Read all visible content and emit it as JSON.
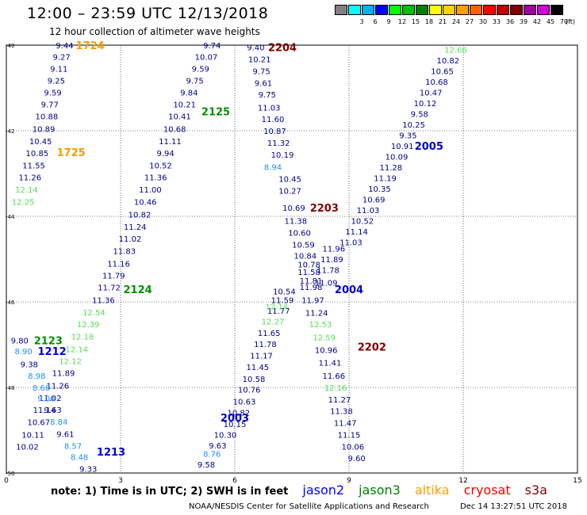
{
  "title": "12:00 – 23:59 UTC 12/13/2018",
  "subtitle": "12 hour collection of altimeter wave heights",
  "color_scale": {
    "unit": "(ft)",
    "swatches": [
      {
        "label": "",
        "color": "#808080"
      },
      {
        "label": "3",
        "color": "#00ffff"
      },
      {
        "label": "6",
        "color": "#00b0f0"
      },
      {
        "label": "9",
        "color": "#0000ff"
      },
      {
        "label": "12",
        "color": "#00ff00"
      },
      {
        "label": "15",
        "color": "#00c000"
      },
      {
        "label": "18",
        "color": "#008000"
      },
      {
        "label": "21",
        "color": "#ffff00"
      },
      {
        "label": "24",
        "color": "#ffd000"
      },
      {
        "label": "27",
        "color": "#ffa000"
      },
      {
        "label": "30",
        "color": "#ff6000"
      },
      {
        "label": "33",
        "color": "#ff0000"
      },
      {
        "label": "36",
        "color": "#c00000"
      },
      {
        "label": "39",
        "color": "#800000"
      },
      {
        "label": "42",
        "color": "#a000a0"
      },
      {
        "label": "45",
        "color": "#d000d0"
      },
      {
        "label": "70",
        "color": "#000000"
      }
    ]
  },
  "axes": {
    "x_ticks": [
      "0",
      "3",
      "6",
      "9",
      "12",
      "15"
    ],
    "y_ticks": [
      "-40",
      "-42",
      "-44",
      "-46",
      "-48",
      "-50"
    ],
    "x_range": [
      0,
      15
    ],
    "y_range": [
      -50,
      -40
    ]
  },
  "legend": {
    "note": "note: 1) Time is in UTC; 2) SWH is in feet",
    "missions": [
      {
        "name": "jason2",
        "color": "#0000ff"
      },
      {
        "name": "jason3",
        "color": "#008000"
      },
      {
        "name": "altika",
        "color": "#ffa000"
      },
      {
        "name": "cryosat",
        "color": "#ff0000"
      },
      {
        "name": "s3a",
        "color": "#800000"
      }
    ]
  },
  "footer": {
    "org": "NOAA/NESDIS Center for Satellite Applications and Research",
    "generated": "Dec 14 13:27:51 UTC 2018"
  },
  "colors": {
    "navy": "#00008b",
    "lightblue": "#1e90ff",
    "lightgreen": "#55dd55",
    "green": "#009000",
    "orange": "#ff9900",
    "darkred": "#800000",
    "blue": "#0000cc"
  },
  "tracks": [
    {
      "id": "1724",
      "color": "#ff9900",
      "label_lon": 2.2,
      "label_lat": -40.0,
      "points": [
        {
          "lon": 1.53,
          "lat": -40.0,
          "v": "9.44",
          "c": "navy"
        },
        {
          "lon": 1.45,
          "lat": -40.27,
          "v": "9.27",
          "c": "navy"
        },
        {
          "lon": 1.38,
          "lat": -40.55,
          "v": "9.11",
          "c": "navy"
        },
        {
          "lon": 1.31,
          "lat": -40.82,
          "v": "9.25",
          "c": "navy"
        },
        {
          "lon": 1.22,
          "lat": -41.1,
          "v": "9.59",
          "c": "navy"
        },
        {
          "lon": 1.14,
          "lat": -41.38,
          "v": "9.77",
          "c": "navy"
        },
        {
          "lon": 1.06,
          "lat": -41.66,
          "v": "10.88",
          "c": "navy"
        },
        {
          "lon": 0.98,
          "lat": -41.95,
          "v": "10.89",
          "c": "navy"
        },
        {
          "lon": 0.9,
          "lat": -42.24,
          "v": "10.45",
          "c": "navy"
        },
        {
          "lon": 0.81,
          "lat": -42.52,
          "v": "10.85",
          "c": "navy"
        },
        {
          "lon": 0.72,
          "lat": -42.81,
          "v": "11.55",
          "c": "navy"
        },
        {
          "lon": 0.62,
          "lat": -43.08,
          "v": "11.26",
          "c": "navy"
        },
        {
          "lon": 0.53,
          "lat": -43.37,
          "v": "12.14",
          "c": "lightgreen"
        },
        {
          "lon": 0.44,
          "lat": -43.66,
          "v": "12.25",
          "c": "lightgreen"
        }
      ]
    },
    {
      "id": "1725",
      "color": "#ff9900",
      "label_lon": 1.7,
      "label_lat": -42.5,
      "points": []
    },
    {
      "id": "2125",
      "color": "#009000",
      "label_lon": 5.5,
      "label_lat": -41.55,
      "points": [
        {
          "lon": 5.4,
          "lat": -40.0,
          "v": "9.74",
          "c": "navy"
        },
        {
          "lon": 5.25,
          "lat": -40.27,
          "v": "10.07",
          "c": "navy"
        },
        {
          "lon": 5.1,
          "lat": -40.55,
          "v": "9.59",
          "c": "navy"
        },
        {
          "lon": 4.95,
          "lat": -40.82,
          "v": "9.75",
          "c": "navy"
        },
        {
          "lon": 4.8,
          "lat": -41.1,
          "v": "9.84",
          "c": "navy"
        },
        {
          "lon": 4.68,
          "lat": -41.38,
          "v": "10.21",
          "c": "navy"
        },
        {
          "lon": 4.55,
          "lat": -41.66,
          "v": "10.41",
          "c": "navy"
        },
        {
          "lon": 4.42,
          "lat": -41.95,
          "v": "10.68",
          "c": "navy"
        },
        {
          "lon": 4.3,
          "lat": -42.24,
          "v": "11.11",
          "c": "navy"
        },
        {
          "lon": 4.18,
          "lat": -42.52,
          "v": "9.94",
          "c": "navy"
        },
        {
          "lon": 4.05,
          "lat": -42.81,
          "v": "10.52",
          "c": "navy"
        },
        {
          "lon": 3.92,
          "lat": -43.08,
          "v": "11.36",
          "c": "navy"
        },
        {
          "lon": 3.78,
          "lat": -43.37,
          "v": "11.00",
          "c": "navy"
        },
        {
          "lon": 3.65,
          "lat": -43.66,
          "v": "10.46",
          "c": "navy"
        },
        {
          "lon": 3.5,
          "lat": -43.95,
          "v": "10.82",
          "c": "navy"
        },
        {
          "lon": 3.38,
          "lat": -44.24,
          "v": "11.24",
          "c": "navy"
        },
        {
          "lon": 3.25,
          "lat": -44.52,
          "v": "11.02",
          "c": "navy"
        },
        {
          "lon": 3.1,
          "lat": -44.81,
          "v": "11.83",
          "c": "navy"
        },
        {
          "lon": 2.95,
          "lat": -45.1,
          "v": "11.16",
          "c": "navy"
        },
        {
          "lon": 2.82,
          "lat": -45.38,
          "v": "11.79",
          "c": "navy"
        },
        {
          "lon": 2.7,
          "lat": -45.66,
          "v": "11.72",
          "c": "navy"
        },
        {
          "lon": 2.55,
          "lat": -45.95,
          "v": "11.36",
          "c": "navy"
        }
      ]
    },
    {
      "id": "2124",
      "color": "#009000",
      "label_lon": 3.45,
      "label_lat": -45.7,
      "points": [
        {
          "lon": 2.3,
          "lat": -46.24,
          "v": "12.54",
          "c": "lightgreen"
        },
        {
          "lon": 2.15,
          "lat": -46.52,
          "v": "12.39",
          "c": "lightgreen"
        },
        {
          "lon": 2.0,
          "lat": -46.81,
          "v": "12.18",
          "c": "lightgreen"
        },
        {
          "lon": 1.85,
          "lat": -47.1,
          "v": "12.14",
          "c": "lightgreen"
        },
        {
          "lon": 1.68,
          "lat": -47.38,
          "v": "12.12",
          "c": "lightgreen"
        },
        {
          "lon": 1.5,
          "lat": -47.66,
          "v": "11.89",
          "c": "navy"
        },
        {
          "lon": 1.35,
          "lat": -47.95,
          "v": "11.26",
          "c": "navy"
        },
        {
          "lon": 1.15,
          "lat": -48.24,
          "v": "11.02",
          "c": "navy"
        },
        {
          "lon": 1.0,
          "lat": -48.52,
          "v": "11.14",
          "c": "navy"
        },
        {
          "lon": 0.85,
          "lat": -48.81,
          "v": "10.67",
          "c": "navy"
        },
        {
          "lon": 0.7,
          "lat": -49.1,
          "v": "10.11",
          "c": "navy"
        },
        {
          "lon": 0.55,
          "lat": -49.38,
          "v": "10.02",
          "c": "navy"
        }
      ]
    },
    {
      "id": "2123",
      "color": "#009000",
      "label_lon": 1.1,
      "label_lat": -46.9,
      "points": [
        {
          "lon": 0.35,
          "lat": -46.9,
          "v": "9.80",
          "c": "navy"
        },
        {
          "lon": 0.45,
          "lat": -47.15,
          "v": "8.90",
          "c": "lightblue"
        }
      ]
    },
    {
      "id": "1212",
      "color": "#0000cc",
      "label_lon": 1.2,
      "label_lat": -47.15,
      "points": [
        {
          "lon": 0.6,
          "lat": -47.45,
          "v": "9.38",
          "c": "navy"
        },
        {
          "lon": 0.8,
          "lat": -47.72,
          "v": "8.98",
          "c": "lightblue"
        },
        {
          "lon": 0.92,
          "lat": -48.0,
          "v": "8.68",
          "c": "lightblue"
        },
        {
          "lon": 1.05,
          "lat": -48.25,
          "v": "9.00",
          "c": "lightblue"
        },
        {
          "lon": 1.22,
          "lat": -48.52,
          "v": "9.63",
          "c": "navy"
        },
        {
          "lon": 1.38,
          "lat": -48.8,
          "v": "8.84",
          "c": "lightblue"
        },
        {
          "lon": 1.55,
          "lat": -49.08,
          "v": "9.61",
          "c": "navy"
        },
        {
          "lon": 1.75,
          "lat": -49.36,
          "v": "8.57",
          "c": "lightblue"
        },
        {
          "lon": 1.92,
          "lat": -49.62,
          "v": "8.48",
          "c": "lightblue"
        }
      ]
    },
    {
      "id": "1213",
      "color": "#0000cc",
      "label_lon": 2.75,
      "label_lat": -49.5,
      "points": [
        {
          "lon": 2.15,
          "lat": -49.9,
          "v": "9.33",
          "c": "navy"
        }
      ]
    },
    {
      "id": "2204",
      "color": "#800000",
      "label_lon": 7.25,
      "label_lat": -40.05,
      "points": [
        {
          "lon": 6.55,
          "lat": -40.05,
          "v": "9.40",
          "c": "navy"
        },
        {
          "lon": 6.65,
          "lat": -40.32,
          "v": "10.21",
          "c": "navy"
        },
        {
          "lon": 6.7,
          "lat": -40.6,
          "v": "9.75",
          "c": "navy"
        },
        {
          "lon": 6.75,
          "lat": -40.88,
          "v": "9.61",
          "c": "navy"
        },
        {
          "lon": 6.85,
          "lat": -41.15,
          "v": "9.75",
          "c": "navy"
        },
        {
          "lon": 6.9,
          "lat": -41.45,
          "v": "11.03",
          "c": "navy"
        },
        {
          "lon": 7.0,
          "lat": -41.72,
          "v": "11.60",
          "c": "navy"
        },
        {
          "lon": 7.05,
          "lat": -42.0,
          "v": "10.87",
          "c": "navy"
        },
        {
          "lon": 7.15,
          "lat": -42.28,
          "v": "11.32",
          "c": "navy"
        },
        {
          "lon": 7.25,
          "lat": -42.56,
          "v": "10.19",
          "c": "navy"
        },
        {
          "lon": 7.0,
          "lat": -42.84,
          "v": "8.94",
          "c": "lightblue"
        },
        {
          "lon": 7.45,
          "lat": -43.12,
          "v": "10.45",
          "c": "navy"
        },
        {
          "lon": 7.45,
          "lat": -43.4,
          "v": "10.27",
          "c": "navy"
        }
      ]
    },
    {
      "id": "2203",
      "color": "#800000",
      "label_lon": 8.35,
      "label_lat": -43.8,
      "points": [
        {
          "lon": 7.55,
          "lat": -43.8,
          "v": "10.69",
          "c": "navy"
        },
        {
          "lon": 7.6,
          "lat": -44.1,
          "v": "11.38",
          "c": "navy"
        },
        {
          "lon": 7.7,
          "lat": -44.38,
          "v": "10.60",
          "c": "navy"
        },
        {
          "lon": 7.8,
          "lat": -44.66,
          "v": "10.59",
          "c": "navy"
        },
        {
          "lon": 7.85,
          "lat": -44.92,
          "v": "10.84",
          "c": "navy"
        },
        {
          "lon": 7.95,
          "lat": -45.12,
          "v": "10.78",
          "c": "navy"
        },
        {
          "lon": 7.95,
          "lat": -45.3,
          "v": "11.58",
          "c": "navy"
        },
        {
          "lon": 8.0,
          "lat": -45.5,
          "v": "11.81",
          "c": "navy"
        },
        {
          "lon": 8.0,
          "lat": -45.65,
          "v": "11.98",
          "c": "navy"
        }
      ]
    },
    {
      "id": "2004",
      "color": "#0000cc",
      "label_lon": 9.0,
      "label_lat": -45.7,
      "points": [
        {
          "lon": 8.55,
          "lat": -45.0,
          "v": "11.89",
          "c": "navy"
        },
        {
          "lon": 8.45,
          "lat": -45.25,
          "v": "11.78",
          "c": "navy"
        },
        {
          "lon": 8.6,
          "lat": -44.75,
          "v": "11.96",
          "c": "navy"
        },
        {
          "lon": 8.4,
          "lat": -45.55,
          "v": "11.09",
          "c": "navy"
        },
        {
          "lon": 8.05,
          "lat": -45.95,
          "v": "11.97",
          "c": "navy"
        },
        {
          "lon": 8.15,
          "lat": -46.25,
          "v": "11.24",
          "c": "navy"
        },
        {
          "lon": 8.25,
          "lat": -46.52,
          "v": "12.53",
          "c": "lightgreen"
        },
        {
          "lon": 8.35,
          "lat": -46.82,
          "v": "12.59",
          "c": "lightgreen"
        },
        {
          "lon": 8.4,
          "lat": -47.12,
          "v": "10.96",
          "c": "navy"
        },
        {
          "lon": 8.5,
          "lat": -47.42,
          "v": "11.41",
          "c": "navy"
        },
        {
          "lon": 8.6,
          "lat": -47.72,
          "v": "11.66",
          "c": "navy"
        },
        {
          "lon": 8.65,
          "lat": -48.0,
          "v": "12.16",
          "c": "lightgreen"
        },
        {
          "lon": 8.75,
          "lat": -48.28,
          "v": "11.27",
          "c": "navy"
        },
        {
          "lon": 8.8,
          "lat": -48.55,
          "v": "11.38",
          "c": "navy"
        },
        {
          "lon": 8.9,
          "lat": -48.82,
          "v": "11.47",
          "c": "navy"
        },
        {
          "lon": 9.0,
          "lat": -49.1,
          "v": "11.15",
          "c": "navy"
        },
        {
          "lon": 9.1,
          "lat": -49.38,
          "v": "10.06",
          "c": "navy"
        },
        {
          "lon": 9.2,
          "lat": -49.65,
          "v": "9.60",
          "c": "navy"
        }
      ]
    },
    {
      "id": "2202",
      "color": "#800000",
      "label_lon": 9.6,
      "label_lat": -47.05,
      "points": []
    },
    {
      "id": "2003",
      "color": "#0000cc",
      "label_lon": 6.0,
      "label_lat": -48.7,
      "points": [
        {
          "lon": 7.3,
          "lat": -45.75,
          "v": "10.54",
          "c": "navy"
        },
        {
          "lon": 7.25,
          "lat": -45.95,
          "v": "11.59",
          "c": "navy"
        },
        {
          "lon": 7.15,
          "lat": -46.2,
          "v": "11.77",
          "c": "navy"
        },
        {
          "lon": 7.1,
          "lat": -46.1,
          "v": "12.14",
          "c": "lightgreen"
        },
        {
          "lon": 7.0,
          "lat": -46.45,
          "v": "12.27",
          "c": "lightgreen"
        },
        {
          "lon": 6.9,
          "lat": -46.72,
          "v": "11.65",
          "c": "navy"
        },
        {
          "lon": 6.8,
          "lat": -46.98,
          "v": "11.78",
          "c": "navy"
        },
        {
          "lon": 6.7,
          "lat": -47.25,
          "v": "11.17",
          "c": "navy"
        },
        {
          "lon": 6.6,
          "lat": -47.52,
          "v": "11.45",
          "c": "navy"
        },
        {
          "lon": 6.5,
          "lat": -47.8,
          "v": "10.58",
          "c": "navy"
        },
        {
          "lon": 6.38,
          "lat": -48.05,
          "v": "10.76",
          "c": "navy"
        },
        {
          "lon": 6.25,
          "lat": -48.32,
          "v": "10.63",
          "c": "navy"
        },
        {
          "lon": 6.1,
          "lat": -48.58,
          "v": "10.82",
          "c": "navy"
        },
        {
          "lon": 6.0,
          "lat": -48.85,
          "v": "10.15",
          "c": "navy"
        },
        {
          "lon": 5.75,
          "lat": -49.1,
          "v": "10.30",
          "c": "navy"
        },
        {
          "lon": 5.55,
          "lat": -49.35,
          "v": "9.63",
          "c": "navy"
        },
        {
          "lon": 5.4,
          "lat": -49.55,
          "v": "8.76",
          "c": "lightblue"
        },
        {
          "lon": 5.25,
          "lat": -49.8,
          "v": "9.58",
          "c": "navy"
        }
      ]
    },
    {
      "id": "2005",
      "color": "#0000cc",
      "label_lon": 11.1,
      "label_lat": -42.35,
      "points": [
        {
          "lon": 11.8,
          "lat": -40.1,
          "v": "12.66",
          "c": "lightgreen"
        },
        {
          "lon": 11.6,
          "lat": -40.35,
          "v": "10.82",
          "c": "navy"
        },
        {
          "lon": 11.45,
          "lat": -40.6,
          "v": "10.65",
          "c": "navy"
        },
        {
          "lon": 11.3,
          "lat": -40.85,
          "v": "10.68",
          "c": "navy"
        },
        {
          "lon": 11.15,
          "lat": -41.1,
          "v": "10.47",
          "c": "navy"
        },
        {
          "lon": 11.0,
          "lat": -41.35,
          "v": "10.12",
          "c": "navy"
        },
        {
          "lon": 10.85,
          "lat": -41.6,
          "v": "9.58",
          "c": "navy"
        },
        {
          "lon": 10.7,
          "lat": -41.85,
          "v": "10.25",
          "c": "navy"
        },
        {
          "lon": 10.55,
          "lat": -42.1,
          "v": "9.35",
          "c": "navy"
        },
        {
          "lon": 10.4,
          "lat": -42.35,
          "v": "10.91",
          "c": "navy"
        },
        {
          "lon": 10.25,
          "lat": -42.6,
          "v": "10.09",
          "c": "navy"
        },
        {
          "lon": 10.1,
          "lat": -42.85,
          "v": "11.28",
          "c": "navy"
        },
        {
          "lon": 9.95,
          "lat": -43.1,
          "v": "11.19",
          "c": "navy"
        },
        {
          "lon": 9.8,
          "lat": -43.35,
          "v": "10.35",
          "c": "navy"
        },
        {
          "lon": 9.65,
          "lat": -43.6,
          "v": "10.69",
          "c": "navy"
        },
        {
          "lon": 9.5,
          "lat": -43.85,
          "v": "11.03",
          "c": "navy"
        },
        {
          "lon": 9.35,
          "lat": -44.1,
          "v": "10.52",
          "c": "navy"
        },
        {
          "lon": 9.2,
          "lat": -44.35,
          "v": "11.14",
          "c": "navy"
        },
        {
          "lon": 9.05,
          "lat": -44.6,
          "v": "11.03",
          "c": "navy"
        }
      ]
    }
  ]
}
